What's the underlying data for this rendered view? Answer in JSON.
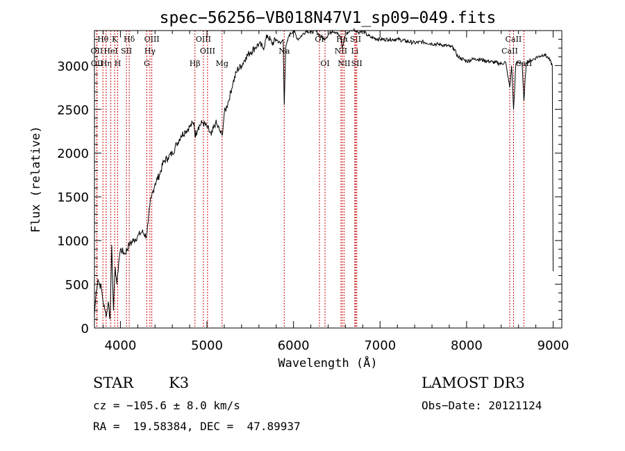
{
  "chart_data": {
    "type": "line",
    "title": "spec−56256−VB018N47V1_sp09−049.fits",
    "xlabel": "Wavelength (Å)",
    "ylabel": "Flux (relative)",
    "xlim": [
      3700,
      9100
    ],
    "ylim": [
      0,
      3400
    ],
    "xticks": [
      4000,
      5000,
      6000,
      7000,
      8000,
      9000
    ],
    "yticks": [
      0,
      500,
      1000,
      1500,
      2000,
      2500,
      3000
    ],
    "spectrum": {
      "name": "flux",
      "x": [
        3700,
        3720,
        3740,
        3760,
        3780,
        3800,
        3820,
        3840,
        3860,
        3880,
        3900,
        3920,
        3940,
        3960,
        3980,
        4000,
        4050,
        4100,
        4150,
        4200,
        4250,
        4300,
        4320,
        4340,
        4360,
        4400,
        4450,
        4500,
        4550,
        4600,
        4650,
        4700,
        4750,
        4800,
        4850,
        4861,
        4900,
        4950,
        5000,
        5050,
        5100,
        5150,
        5175,
        5200,
        5250,
        5300,
        5350,
        5400,
        5450,
        5500,
        5550,
        5600,
        5650,
        5700,
        5750,
        5800,
        5850,
        5880,
        5893,
        5910,
        5950,
        6000,
        6050,
        6100,
        6150,
        6200,
        6250,
        6300,
        6350,
        6400,
        6450,
        6500,
        6550,
        6563,
        6600,
        6650,
        6700,
        6750,
        6800,
        6850,
        6900,
        7000,
        7100,
        7200,
        7300,
        7400,
        7500,
        7600,
        7700,
        7800,
        7850,
        7900,
        8000,
        8100,
        8200,
        8300,
        8400,
        8450,
        8498,
        8520,
        8542,
        8570,
        8600,
        8640,
        8662,
        8690,
        8750,
        8800,
        8850,
        8900,
        8950,
        8990,
        9000
      ],
      "values": [
        150,
        420,
        560,
        500,
        460,
        300,
        200,
        150,
        300,
        100,
        950,
        200,
        700,
        500,
        750,
        900,
        850,
        950,
        1000,
        1050,
        1100,
        1050,
        1200,
        1400,
        1500,
        1650,
        1750,
        1900,
        1950,
        2000,
        2100,
        2200,
        2250,
        2300,
        2350,
        2200,
        2300,
        2350,
        2300,
        2200,
        2350,
        2250,
        2200,
        2450,
        2600,
        2800,
        2950,
        3000,
        3100,
        3150,
        3200,
        3250,
        3200,
        3350,
        3250,
        3300,
        3250,
        3300,
        2550,
        3200,
        3350,
        3400,
        3300,
        3350,
        3400,
        3380,
        3400,
        3350,
        3300,
        3350,
        3400,
        3380,
        3300,
        3200,
        3350,
        3400,
        3420,
        3380,
        3400,
        3350,
        3320,
        3300,
        3300,
        3300,
        3280,
        3260,
        3270,
        3250,
        3240,
        3220,
        3200,
        3100,
        3050,
        3080,
        3060,
        3040,
        3020,
        3040,
        2750,
        3000,
        2500,
        3020,
        3040,
        3030,
        2600,
        3040,
        3060,
        3090,
        3110,
        3130,
        3080,
        3000,
        650
      ]
    },
    "lines": [
      {
        "name": "Hθ",
        "x": 3798,
        "row": 1
      },
      {
        "name": "OII",
        "x": 3727,
        "row": 2
      },
      {
        "name": "OII",
        "x": 3729,
        "row": 3
      },
      {
        "name": "Hη",
        "x": 3835,
        "row": 3
      },
      {
        "name": "K",
        "x": 3934,
        "row": 1
      },
      {
        "name": "HeI",
        "x": 3889,
        "row": 2
      },
      {
        "name": "H",
        "x": 3969,
        "row": 3
      },
      {
        "name": "Hδ",
        "x": 4102,
        "row": 1
      },
      {
        "name": "SII",
        "x": 4070,
        "row": 2
      },
      {
        "name": "OIII",
        "x": 4363,
        "row": 1
      },
      {
        "name": "Hγ",
        "x": 4341,
        "row": 2
      },
      {
        "name": "G",
        "x": 4305,
        "row": 3
      },
      {
        "name": "OIII",
        "x": 4959,
        "row": 1
      },
      {
        "name": "OIII",
        "x": 5007,
        "row": 2
      },
      {
        "name": "Hβ",
        "x": 4861,
        "row": 3
      },
      {
        "name": "Mg",
        "x": 5175,
        "row": 3
      },
      {
        "name": "Na",
        "x": 5893,
        "row": 2
      },
      {
        "name": "OI",
        "x": 6300,
        "row": 1
      },
      {
        "name": "OI",
        "x": 6364,
        "row": 3
      },
      {
        "name": "Hα",
        "x": 6563,
        "row": 1
      },
      {
        "name": "NII",
        "x": 6548,
        "row": 2
      },
      {
        "name": "NII",
        "x": 6584,
        "row": 3
      },
      {
        "name": "SII",
        "x": 6717,
        "row": 1
      },
      {
        "name": "Li",
        "x": 6708,
        "row": 2
      },
      {
        "name": "SII",
        "x": 6731,
        "row": 3
      },
      {
        "name": "CaII",
        "x": 8542,
        "row": 1
      },
      {
        "name": "CaII",
        "x": 8498,
        "row": 2
      },
      {
        "name": "CaII",
        "x": 8662,
        "row": 3
      }
    ]
  },
  "info": {
    "object_class": "STAR",
    "subclass": "K3",
    "survey": "LAMOST DR3",
    "cz": "cz = −105.6 ± 8.0 km/s",
    "obs_date": "Obs−Date: 20121124",
    "coords": "RA =  19.58384, DEC =  47.89937"
  },
  "colors": {
    "line_marker": "#cc0000",
    "spectrum": "#000000",
    "axes": "#000000"
  }
}
